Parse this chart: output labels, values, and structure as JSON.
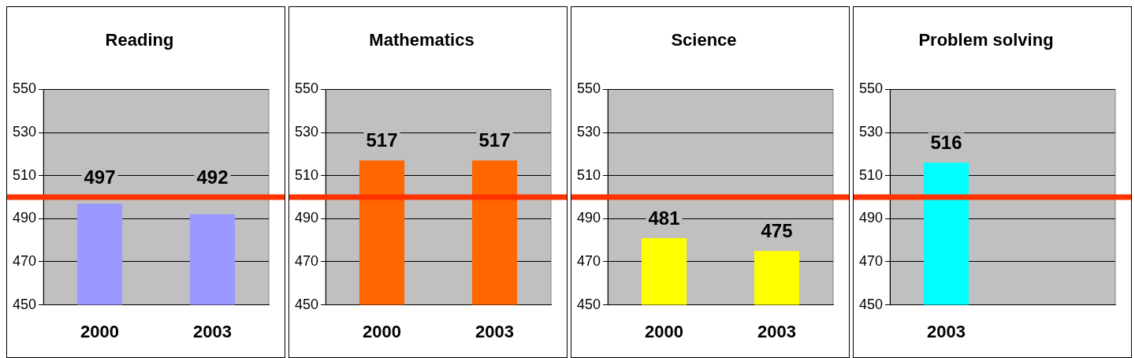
{
  "chart_data": [
    {
      "type": "bar",
      "title": "Reading",
      "categories": [
        "2000",
        "2003"
      ],
      "values": [
        497,
        492
      ],
      "color": "#9999ff",
      "ylim": [
        450,
        550
      ],
      "yticks": [
        450,
        470,
        490,
        510,
        530,
        550
      ],
      "grid": "y",
      "data_labels": true,
      "legend": false,
      "ref_lines": [
        {
          "axis": "y",
          "value": 500,
          "color": "#ff3300"
        }
      ]
    },
    {
      "type": "bar",
      "title": "Mathematics",
      "categories": [
        "2000",
        "2003"
      ],
      "values": [
        517,
        517
      ],
      "color": "#ff6600",
      "ylim": [
        450,
        550
      ],
      "yticks": [
        450,
        470,
        490,
        510,
        530,
        550
      ],
      "grid": "y",
      "data_labels": true,
      "legend": false,
      "ref_lines": [
        {
          "axis": "y",
          "value": 500,
          "color": "#ff3300"
        }
      ]
    },
    {
      "type": "bar",
      "title": "Science",
      "categories": [
        "2000",
        "2003"
      ],
      "values": [
        481,
        475
      ],
      "color": "#ffff00",
      "ylim": [
        450,
        550
      ],
      "yticks": [
        450,
        470,
        490,
        510,
        530,
        550
      ],
      "grid": "y",
      "data_labels": true,
      "legend": false,
      "ref_lines": [
        {
          "axis": "y",
          "value": 500,
          "color": "#ff3300"
        }
      ]
    },
    {
      "type": "bar",
      "title": "Problem solving",
      "categories": [
        "2003",
        null
      ],
      "values": [
        516,
        null
      ],
      "color": "#00ffff",
      "ylim": [
        450,
        550
      ],
      "yticks": [
        450,
        470,
        490,
        510,
        530,
        550
      ],
      "grid": "y",
      "data_labels": true,
      "legend": false,
      "ref_lines": [
        {
          "axis": "y",
          "value": 500,
          "color": "#ff3300"
        }
      ]
    }
  ]
}
